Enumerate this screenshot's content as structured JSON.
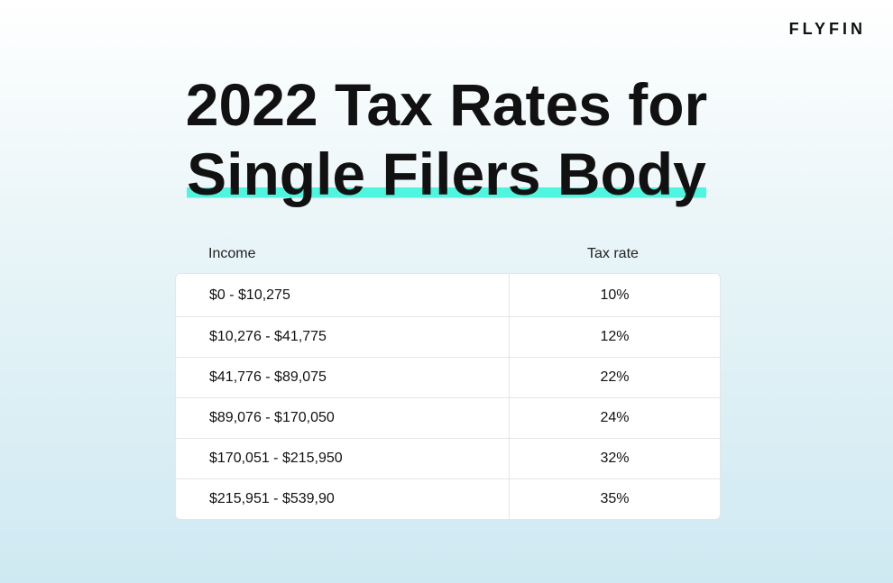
{
  "brand": "FLYFIN",
  "title": {
    "line1": "2022 Tax Rates for",
    "line2": "Single Filers Body"
  },
  "table": {
    "header": [
      "Income",
      "Tax rate"
    ],
    "rows": [
      [
        "$0 - $10,275",
        "10%"
      ],
      [
        "$10,276 - $41,775",
        "12%"
      ],
      [
        "$41,776 - $89,075",
        "22%"
      ],
      [
        "$89,076 - $170,050",
        "24%"
      ],
      [
        "$170,051 - $215,950",
        "32%"
      ],
      [
        "$215,951 - $539,90",
        "35%"
      ]
    ]
  }
}
